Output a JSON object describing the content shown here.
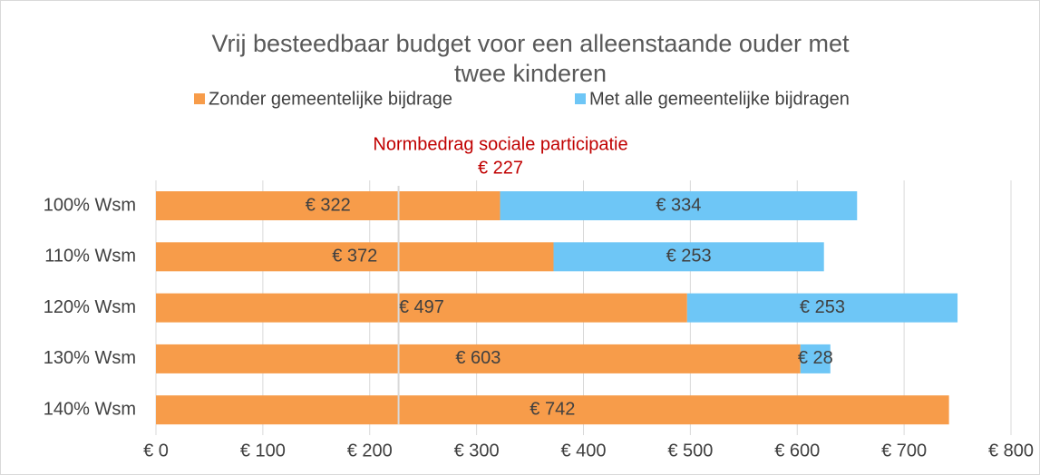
{
  "chart_data": {
    "type": "stacked-bar-horizontal",
    "title": [
      "Vrij besteedbaar budget voor een alleenstaande ouder met",
      "twee kinderen"
    ],
    "categories": [
      "100% Wsm",
      "110% Wsm",
      "120% Wsm",
      "130% Wsm",
      "140% Wsm"
    ],
    "series": [
      {
        "name": "Zonder gemeentelijke bijdrage",
        "color": "#f79c4a",
        "values": [
          322,
          372,
          497,
          603,
          742
        ],
        "value_labels": [
          "€ 322",
          "€ 372",
          "€ 497",
          "€ 603",
          "€ 742"
        ]
      },
      {
        "name": "Met alle gemeentelijke bijdragen",
        "color": "#6ec6f6",
        "values": [
          334,
          253,
          253,
          28,
          null
        ],
        "value_labels": [
          "€ 334",
          "€ 253",
          "€ 253",
          "€ 28",
          null
        ]
      }
    ],
    "xlim": [
      0,
      800
    ],
    "xticks": [
      {
        "value": 0,
        "label": "€ 0"
      },
      {
        "value": 100,
        "label": "€ 100"
      },
      {
        "value": 200,
        "label": "€ 200"
      },
      {
        "value": 300,
        "label": "€ 300"
      },
      {
        "value": 400,
        "label": "€ 400"
      },
      {
        "value": 500,
        "label": "€ 500"
      },
      {
        "value": 600,
        "label": "€ 600"
      },
      {
        "value": 700,
        "label": "€ 700"
      },
      {
        "value": 800,
        "label": "€ 800"
      }
    ],
    "grid": true,
    "legend": "top",
    "reference_line": {
      "label": "Normbedrag sociale participatie",
      "value": 227,
      "value_label": "€ 227",
      "color": "#c00000"
    }
  }
}
